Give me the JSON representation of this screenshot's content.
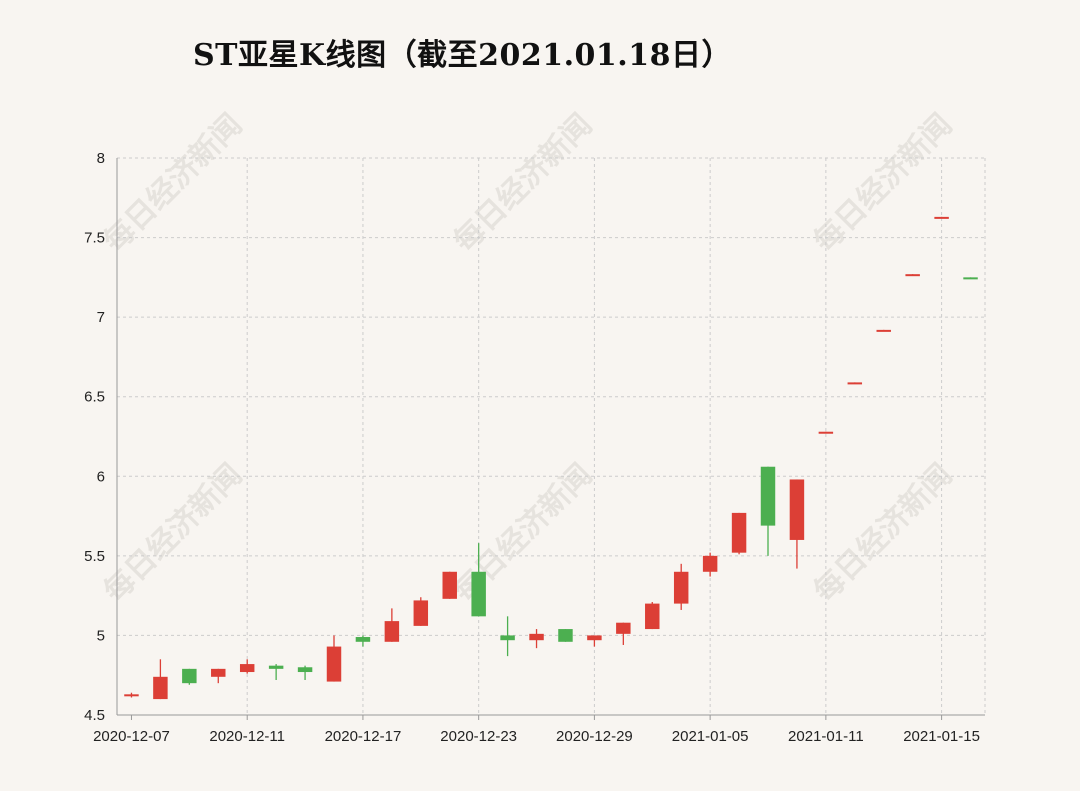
{
  "chart_data": {
    "type": "candlestick",
    "title": "ST亚星K线图（截至2021.01.18日）",
    "watermark": "每日经济新闻",
    "ylim": [
      4.5,
      8
    ],
    "yticks": [
      "8",
      "7.5",
      "7",
      "6.5",
      "6",
      "5.5",
      "5",
      "4.5"
    ],
    "xticks": [
      "2020-12-07",
      "2020-12-11",
      "2020-12-17",
      "2020-12-23",
      "2020-12-29",
      "2021-01-05",
      "2021-01-11",
      "2021-01-15"
    ],
    "grid": true,
    "colors": {
      "up": "#dc3f36",
      "down": "#4caf50",
      "grid": "#cccccc",
      "axis": "#999999",
      "label": "#222222"
    },
    "candles": [
      {
        "date": "2020-12-07",
        "open": 4.62,
        "close": 4.63,
        "high": 4.64,
        "low": 4.61
      },
      {
        "date": "2020-12-08",
        "open": 4.6,
        "close": 4.74,
        "high": 4.85,
        "low": 4.6
      },
      {
        "date": "2020-12-09",
        "open": 4.79,
        "close": 4.7,
        "high": 4.79,
        "low": 4.69
      },
      {
        "date": "2020-12-10",
        "open": 4.74,
        "close": 4.79,
        "high": 4.79,
        "low": 4.7
      },
      {
        "date": "2020-12-11",
        "open": 4.77,
        "close": 4.82,
        "high": 4.85,
        "low": 4.76
      },
      {
        "date": "2020-12-14",
        "open": 4.81,
        "close": 4.79,
        "high": 4.82,
        "low": 4.72
      },
      {
        "date": "2020-12-15",
        "open": 4.8,
        "close": 4.77,
        "high": 4.81,
        "low": 4.72
      },
      {
        "date": "2020-12-16",
        "open": 4.71,
        "close": 4.93,
        "high": 5.0,
        "low": 4.71
      },
      {
        "date": "2020-12-17",
        "open": 4.99,
        "close": 4.96,
        "high": 5.0,
        "low": 4.93
      },
      {
        "date": "2020-12-18",
        "open": 4.96,
        "close": 5.09,
        "high": 5.17,
        "low": 4.96
      },
      {
        "date": "2020-12-21",
        "open": 5.06,
        "close": 5.22,
        "high": 5.24,
        "low": 5.06
      },
      {
        "date": "2020-12-22",
        "open": 5.23,
        "close": 5.4,
        "high": 5.4,
        "low": 5.23
      },
      {
        "date": "2020-12-23",
        "open": 5.4,
        "close": 5.12,
        "high": 5.58,
        "low": 5.12
      },
      {
        "date": "2020-12-24",
        "open": 5.0,
        "close": 4.97,
        "high": 5.12,
        "low": 4.87
      },
      {
        "date": "2020-12-25",
        "open": 4.97,
        "close": 5.01,
        "high": 5.04,
        "low": 4.92
      },
      {
        "date": "2020-12-28",
        "open": 5.04,
        "close": 4.96,
        "high": 5.04,
        "low": 4.96
      },
      {
        "date": "2020-12-29",
        "open": 4.97,
        "close": 5.0,
        "high": 5.0,
        "low": 4.93
      },
      {
        "date": "2020-12-30",
        "open": 5.01,
        "close": 5.08,
        "high": 5.08,
        "low": 4.94
      },
      {
        "date": "2020-12-31",
        "open": 5.04,
        "close": 5.2,
        "high": 5.21,
        "low": 5.04
      },
      {
        "date": "2021-01-04",
        "open": 5.2,
        "close": 5.4,
        "high": 5.45,
        "low": 5.16
      },
      {
        "date": "2021-01-05",
        "open": 5.4,
        "close": 5.5,
        "high": 5.52,
        "low": 5.37
      },
      {
        "date": "2021-01-06",
        "open": 5.52,
        "close": 5.77,
        "high": 5.77,
        "low": 5.51
      },
      {
        "date": "2021-01-07",
        "open": 6.06,
        "close": 5.69,
        "high": 6.06,
        "low": 5.5
      },
      {
        "date": "2021-01-08",
        "open": 5.6,
        "close": 5.98,
        "high": 5.98,
        "low": 5.42
      },
      {
        "date": "2021-01-11",
        "open": 6.27,
        "close": 6.28,
        "high": 6.28,
        "low": 6.27
      },
      {
        "date": "2021-01-12",
        "open": 6.58,
        "close": 6.59,
        "high": 6.59,
        "low": 6.58
      },
      {
        "date": "2021-01-13",
        "open": 6.91,
        "close": 6.92,
        "high": 6.92,
        "low": 6.91
      },
      {
        "date": "2021-01-14",
        "open": 7.26,
        "close": 7.27,
        "high": 7.27,
        "low": 7.26
      },
      {
        "date": "2021-01-15",
        "open": 7.62,
        "close": 7.63,
        "high": 7.63,
        "low": 7.62
      },
      {
        "date": "2021-01-18",
        "open": 7.25,
        "close": 7.24,
        "high": 7.25,
        "low": 7.24
      }
    ]
  }
}
